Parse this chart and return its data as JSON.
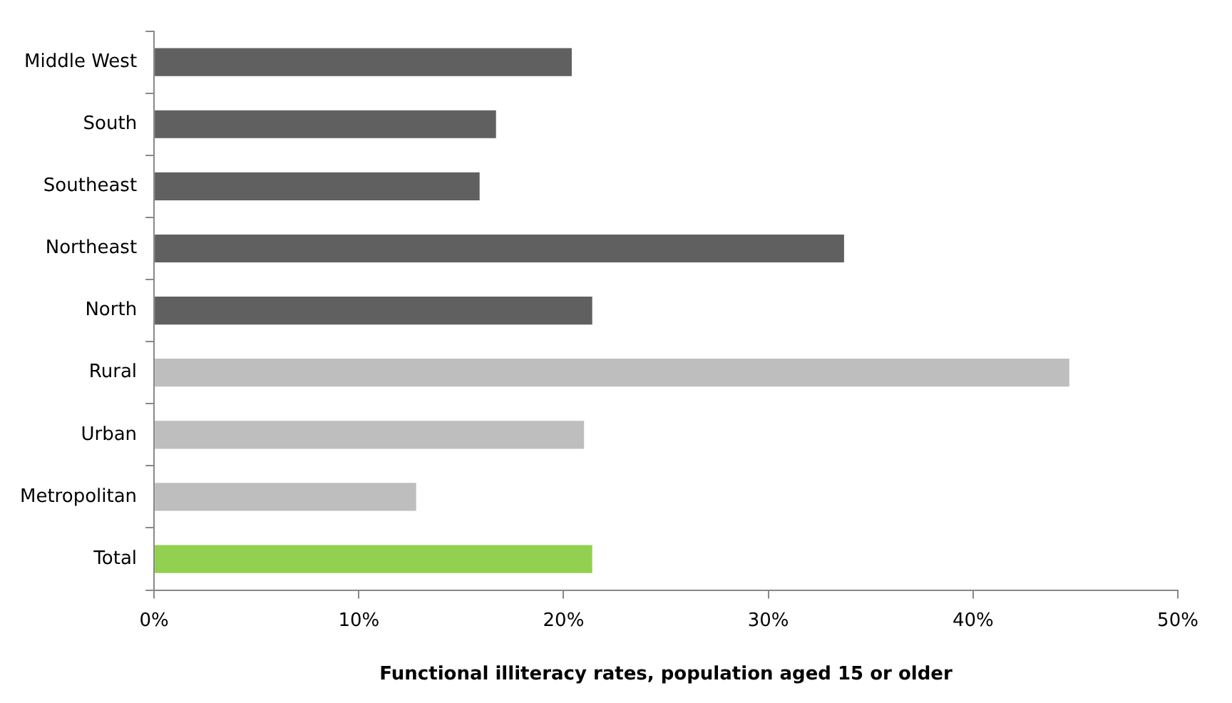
{
  "chart_data": {
    "type": "bar",
    "orientation": "horizontal",
    "xlabel": "Functional illiteracy rates, population aged 15 or older",
    "categories": [
      "Middle West",
      "South",
      "Southeast",
      "Northeast",
      "North",
      "Rural",
      "Urban",
      "Metropolitan",
      "Total"
    ],
    "values": [
      20.4,
      16.7,
      15.9,
      33.7,
      21.4,
      44.7,
      21.0,
      12.8,
      21.4
    ],
    "colors": [
      "#606060",
      "#606060",
      "#606060",
      "#606060",
      "#606060",
      "#bebebe",
      "#bebebe",
      "#bebebe",
      "#92d050"
    ],
    "xlim": [
      0,
      50
    ],
    "xticks": [
      {
        "value": 0,
        "label": "0%"
      },
      {
        "value": 10,
        "label": "10%"
      },
      {
        "value": 20,
        "label": "20%"
      },
      {
        "value": 30,
        "label": "30%"
      },
      {
        "value": 40,
        "label": "40%"
      },
      {
        "value": 50,
        "label": "50%"
      }
    ],
    "grid": false,
    "legend": false
  }
}
